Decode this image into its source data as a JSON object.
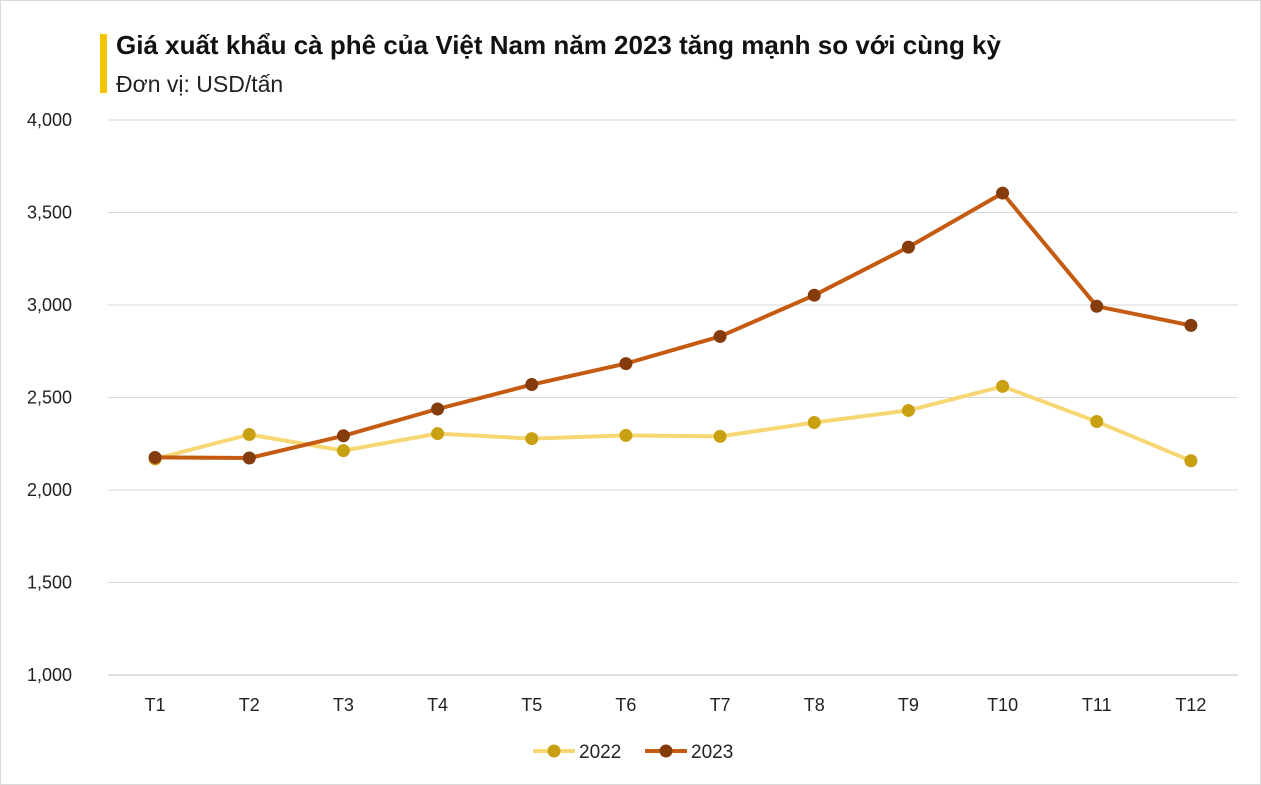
{
  "chart_data": {
    "type": "line",
    "title": "Giá xuất khẩu cà phê của Việt Nam năm 2023 tăng mạnh so với cùng kỳ",
    "subtitle": "Đơn vị: USD/tấn",
    "categories": [
      "T1",
      "T2",
      "T3",
      "T4",
      "T5",
      "T6",
      "T7",
      "T8",
      "T9",
      "T10",
      "T11",
      "T12"
    ],
    "series": [
      {
        "name": "2022",
        "color": "#f7d774",
        "marker_color": "#c9a012",
        "values": [
          2168,
          2300,
          2213,
          2305,
          2278,
          2295,
          2290,
          2365,
          2430,
          2560,
          2370,
          2158
        ]
      },
      {
        "name": "2023",
        "color": "#c55a11",
        "marker_color": "#843c0c",
        "values": [
          2176,
          2173,
          2293,
          2438,
          2570,
          2683,
          2830,
          3053,
          3313,
          3605,
          2993,
          2890
        ]
      }
    ],
    "yticks": [
      "1,000",
      "1,500",
      "2,000",
      "2,500",
      "3,000",
      "3,500",
      "4,000"
    ],
    "ylim": [
      1000,
      4000
    ],
    "xlabel": "",
    "ylabel": "",
    "grid": true,
    "legend": "bottom-center"
  }
}
